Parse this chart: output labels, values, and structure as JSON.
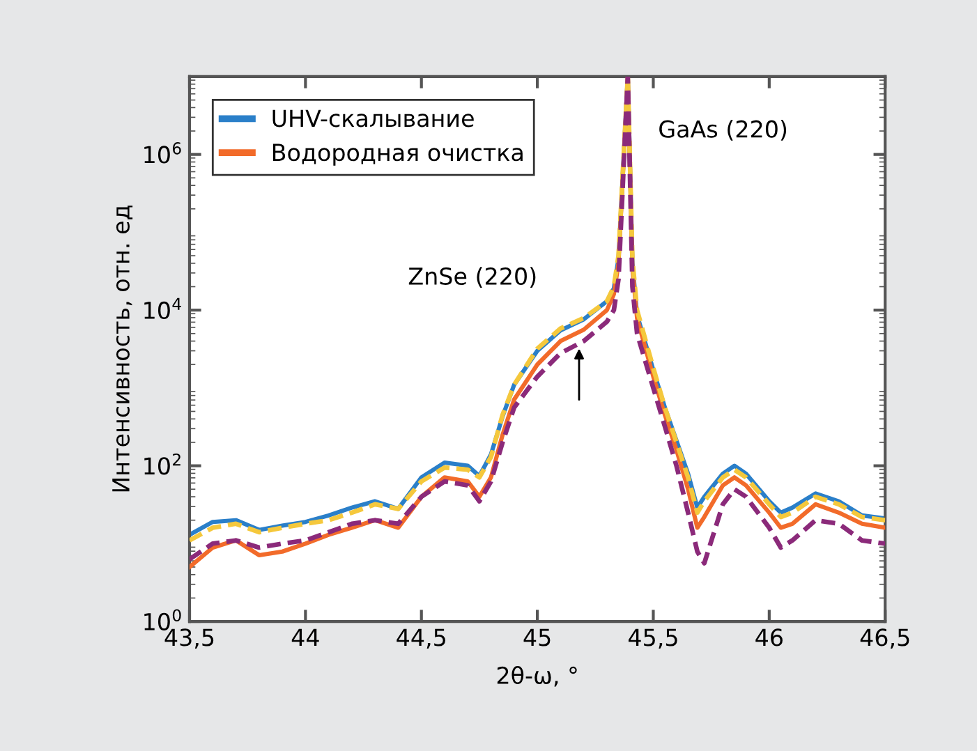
{
  "chart_data": {
    "type": "line",
    "xlabel": "2θ-ω, °",
    "ylabel": "Интенсивность, отн. ед",
    "x": [
      43.5,
      43.6,
      43.7,
      43.8,
      43.9,
      44.0,
      44.1,
      44.2,
      44.3,
      44.4,
      44.5,
      44.6,
      44.7,
      44.75,
      44.8,
      44.85,
      44.9,
      45.0,
      45.1,
      45.2,
      45.3,
      45.33,
      45.35,
      45.39,
      45.41,
      45.43,
      45.5,
      45.55,
      45.6,
      45.65,
      45.69,
      45.72,
      45.8,
      45.85,
      45.9,
      46.0,
      46.05,
      46.1,
      46.2,
      46.3,
      46.4,
      46.5
    ],
    "series": [
      {
        "name": "UHV-скалывание",
        "color": "#2a7fc9",
        "line_style": "solid",
        "values": [
          13,
          19,
          20,
          15,
          17,
          19,
          23,
          29,
          35,
          28,
          71,
          110,
          100,
          74,
          140,
          430,
          1100,
          3000,
          5500,
          7600,
          13000,
          19000,
          46000,
          10000000,
          40000,
          8700,
          1700,
          560,
          210,
          79,
          29,
          40,
          79,
          100,
          79,
          35,
          25,
          29,
          44,
          35,
          23,
          21
        ]
      },
      {
        "name": "Водородная очистка",
        "color": "#f26b2a",
        "line_style": "solid",
        "values": [
          5,
          8.9,
          11,
          7.1,
          7.9,
          10,
          13,
          16,
          20,
          16,
          40,
          71,
          63,
          40,
          71,
          250,
          710,
          2000,
          4000,
          5600,
          10000,
          16000,
          40000,
          10000000,
          35000,
          7900,
          1400,
          450,
          160,
          50,
          16,
          22,
          56,
          71,
          56,
          25,
          16,
          18,
          32,
          25,
          18,
          16
        ]
      },
      {
        "color": "#f5c83c",
        "line_style": "dashed",
        "values": [
          11,
          16,
          18,
          14,
          16,
          18,
          20,
          25,
          32,
          28,
          63,
          95,
          89,
          71,
          130,
          450,
          1100,
          3200,
          5800,
          7900,
          13000,
          20000,
          50000,
          10000000,
          45000,
          10000,
          1800,
          560,
          200,
          71,
          25,
          35,
          71,
          89,
          71,
          32,
          22,
          25,
          40,
          32,
          22,
          20
        ]
      },
      {
        "color": "#8b2a7a",
        "line_style": "dashed",
        "values": [
          6.3,
          10,
          11,
          8.9,
          10,
          11,
          14,
          18,
          20,
          18,
          40,
          63,
          56,
          35,
          63,
          200,
          560,
          1400,
          2800,
          4000,
          7100,
          10000,
          25000,
          10000000,
          20000,
          5000,
          1000,
          320,
          100,
          25,
          7.9,
          5.6,
          32,
          50,
          40,
          16,
          8.9,
          11,
          20,
          18,
          11,
          10
        ]
      }
    ],
    "log": "y",
    "xlim": [
      43.5,
      46.5
    ],
    "ylim": [
      1,
      10000000
    ],
    "xticks": [
      {
        "value": 43.5,
        "label": "43,5"
      },
      44,
      {
        "value": 44.5,
        "label": "44,5"
      },
      45,
      {
        "value": 45.5,
        "label": "45,5"
      },
      46,
      {
        "value": 46.5,
        "label": "46,5"
      }
    ],
    "yticks": [
      {
        "value": 1,
        "label": "10$^{0}$"
      },
      {
        "value": 100,
        "label": "10$^{2}$"
      },
      {
        "value": 10000,
        "label": "10$^{4}$"
      },
      {
        "value": 1000000,
        "label": "10$^{6}$"
      }
    ],
    "annotations": [
      "ZnSe (220)",
      "GaAs (220)"
    ],
    "legend": "top left",
    "grid": false,
    "marker": "none"
  }
}
